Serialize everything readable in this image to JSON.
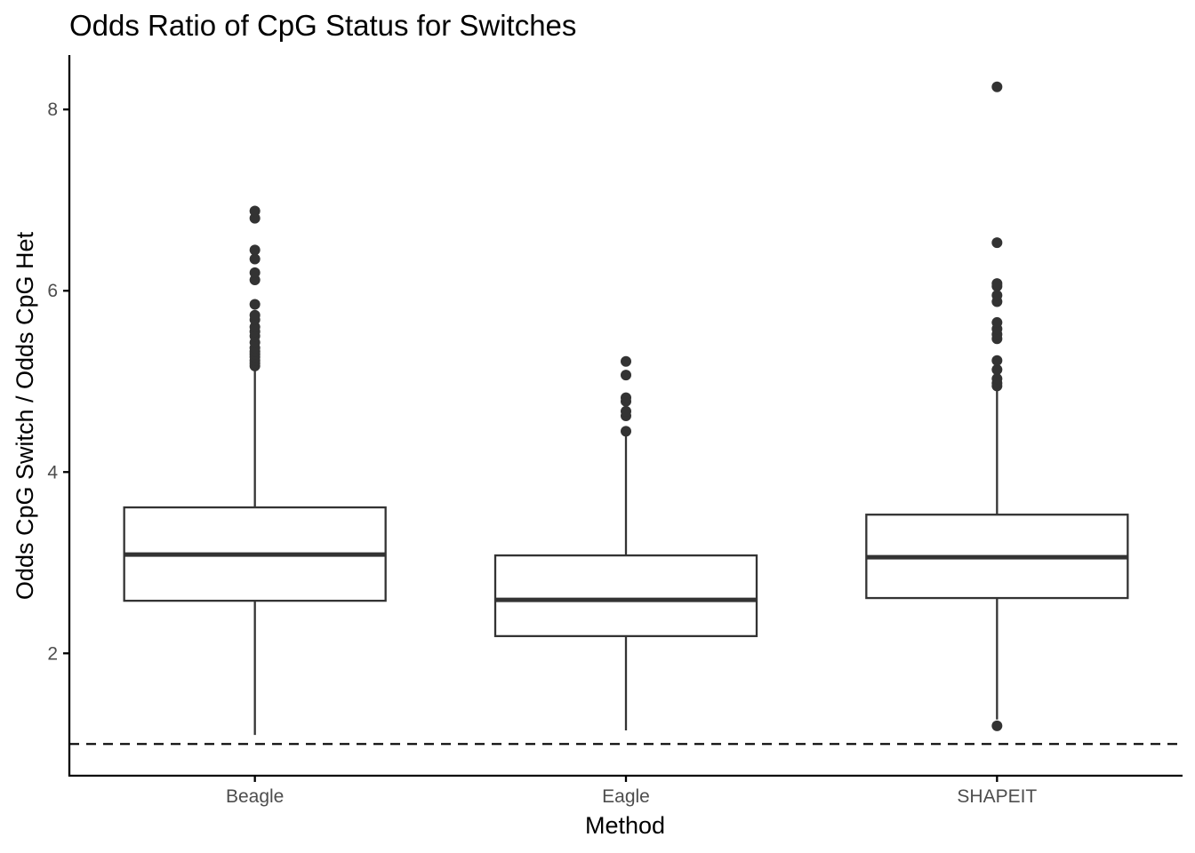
{
  "chart_data": {
    "type": "boxplot",
    "title": "Odds Ratio of CpG Status for Switches",
    "xlabel": "Method",
    "ylabel": "Odds CpG Switch / Odds CpG Het",
    "categories": [
      "Beagle",
      "Eagle",
      "SHAPEIT"
    ],
    "ylim": [
      0.65,
      8.6
    ],
    "yticks": [
      2,
      4,
      6,
      8
    ],
    "reference_line": {
      "y": 1,
      "style": "dashed"
    },
    "grid": false,
    "legend": "none",
    "boxes": [
      {
        "category": "Beagle",
        "whisker_low": 1.1,
        "q1": 2.58,
        "median": 3.09,
        "q3": 3.61,
        "whisker_high": 5.15,
        "outliers": [
          5.17,
          5.2,
          5.23,
          5.27,
          5.3,
          5.33,
          5.37,
          5.43,
          5.5,
          5.55,
          5.6,
          5.68,
          5.73,
          5.85,
          6.12,
          6.2,
          6.35,
          6.45,
          6.8,
          6.88
        ]
      },
      {
        "category": "Eagle",
        "whisker_low": 1.15,
        "q1": 2.19,
        "median": 2.59,
        "q3": 3.08,
        "whisker_high": 4.42,
        "outliers": [
          4.45,
          4.62,
          4.67,
          4.78,
          4.82,
          5.07,
          5.22
        ]
      },
      {
        "category": "SHAPEIT",
        "whisker_low": 1.27,
        "q1": 2.61,
        "median": 3.06,
        "q3": 3.53,
        "whisker_high": 4.92,
        "outliers": [
          1.2,
          4.95,
          4.98,
          5.03,
          5.13,
          5.23,
          5.47,
          5.52,
          5.58,
          5.65,
          5.88,
          5.95,
          6.05,
          6.08,
          6.53,
          8.25
        ]
      }
    ],
    "colors": {
      "box_stroke": "#333333",
      "box_fill": "#ffffff",
      "point": "#333333",
      "axis": "#000000",
      "tick_label": "#4d4d4d"
    }
  }
}
